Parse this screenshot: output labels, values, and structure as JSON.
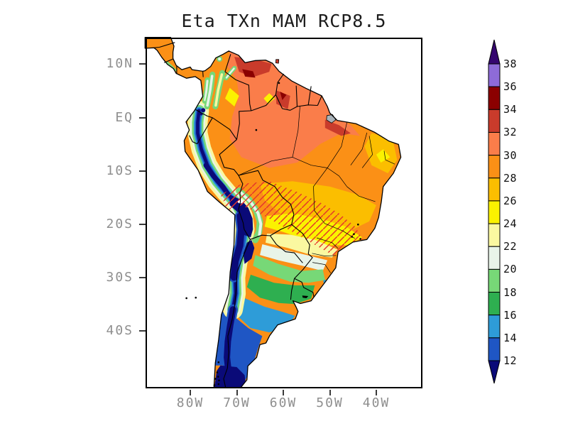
{
  "title": "Eta TXn MAM RCP8.5",
  "map": {
    "region": "South America",
    "y_axis_ticks": [
      "10N",
      "EQ",
      "10S",
      "20S",
      "30S",
      "40S"
    ],
    "x_axis_ticks": [
      "80W",
      "70W",
      "60W",
      "50W",
      "40W"
    ]
  },
  "colorbar": {
    "tick_labels": [
      "38",
      "36",
      "34",
      "32",
      "30",
      "28",
      "26",
      "24",
      "22",
      "20",
      "18",
      "16",
      "14",
      "12"
    ],
    "segment_colors_top_to_bottom": [
      "#35066F",
      "#8E6BD8",
      "#8B0000",
      "#C93B2B",
      "#FA7D4A",
      "#FB9016",
      "#FBBE00",
      "#FBF200",
      "#FAF8A0",
      "#E8F4E8",
      "#77D877",
      "#2EAF50",
      "#2E9CD8",
      "#1F56C4",
      "#0A0A78"
    ]
  },
  "chart_data": {
    "type": "heatmap",
    "title": "Eta TXn MAM RCP8.5",
    "model": "Eta",
    "variable": "TXn",
    "season": "MAM",
    "scenario": "RCP8.5",
    "region": "South America",
    "levels": [
      12,
      14,
      16,
      18,
      20,
      22,
      24,
      26,
      28,
      30,
      32,
      34,
      36,
      38
    ],
    "palette": [
      "#35066F",
      "#8E6BD8",
      "#8B0000",
      "#C93B2B",
      "#FA7D4A",
      "#FB9016",
      "#FBBE00",
      "#FBF200",
      "#FAF8A0",
      "#E8F4E8",
      "#77D877",
      "#2EAF50",
      "#2E9CD8",
      "#1F56C4",
      "#0A0A78"
    ],
    "lat_ticks": [
      "10N",
      "EQ",
      "10S",
      "20S",
      "30S",
      "40S"
    ],
    "lon_ticks": [
      "80W",
      "70W",
      "60W",
      "50W",
      "40W"
    ],
    "legend_position": "right",
    "grid": false,
    "features": [
      "Values of 30-36 over northern South America: Venezuela, the Guianas and central-eastern Amazonia, with dark-red cores (34-36) in interior Venezuela and the Guiana highlands",
      "28-30 over most of Amazonia, the Colombian llanos and northeast Brazil",
      "24-28 over the central Brazil plateau, eastern Bolivia and the Gran Chaco",
      "20-24 band across Paraguay and Sao Paulo region",
      "12-20 over southern Brazil, Uruguay and the Pampas, decreasing southward",
      "Below 12 along the Andes cordillera, the Altiplano, Chile and Patagonia",
      "Red diagonal hatching from the Bolivian Andes across Paraguay to southeast Brazil"
    ]
  }
}
